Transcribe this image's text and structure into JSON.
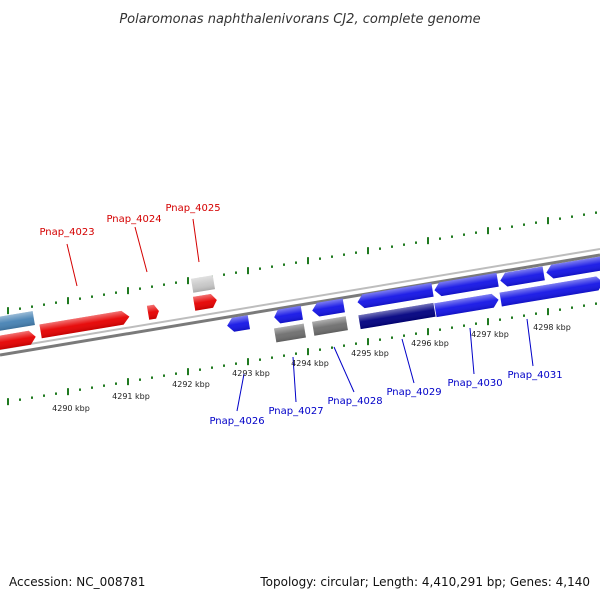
{
  "title": "Polaromonas naphthalenivorans CJ2, complete genome",
  "footer": {
    "accession": "Accession: NC_008781",
    "summary": "Topology: circular; Length: 4,410,291 bp; Genes: 4,140"
  },
  "colors": {
    "forward_label": "#d40000",
    "reverse_label": "#0000c8",
    "red_gene": "#e60000",
    "blue_gene": "#1414e6",
    "navy_gene": "#000080",
    "steel_gene": "#4682b4",
    "gray_gene": "#6e6e6e",
    "lightgray_gene": "#c8c8c8",
    "backbone": "#8c8c8c",
    "ticks": "#1f7a1f"
  },
  "scale_labels": [
    "4290 kbp",
    "4291 kbp",
    "4292 kbp",
    "4293 kbp",
    "4294 kbp",
    "4295 kbp",
    "4296 kbp",
    "4297 kbp",
    "4298 kbp"
  ],
  "forward_labels": [
    "Pnap_4023",
    "Pnap_4024",
    "Pnap_4025"
  ],
  "reverse_labels": [
    "Pnap_4026",
    "Pnap_4027",
    "Pnap_4028",
    "Pnap_4029",
    "Pnap_4030",
    "Pnap_4031"
  ]
}
